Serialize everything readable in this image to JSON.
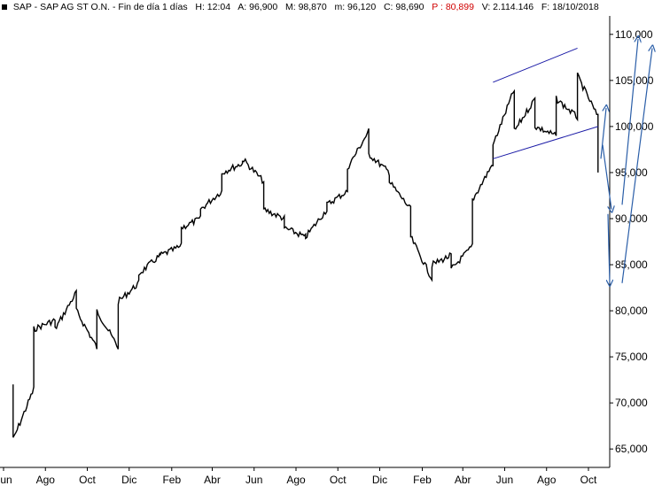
{
  "header": {
    "symbol": "SAP - SAP AG ST O.N.",
    "period": "Fin de día 1 días",
    "high": "H: 12:04",
    "open": "A: 96,900",
    "max": "M: 98,870",
    "min": "m: 96,120",
    "close": "C: 98,690",
    "p_value": "P : 80,899",
    "volume": "V: 2.114.146",
    "date": "F: 18/10/2018"
  },
  "colors": {
    "price": "#000000",
    "channel": "#1a1aa6",
    "arrows": "#2a5ea8",
    "p_value": "#d00000",
    "grid": "#c8c8c8"
  },
  "chart_data": {
    "type": "line",
    "title": "SAP - SAP AG ST O.N.",
    "xlabel": "",
    "ylabel": "",
    "y_axis_side": "right",
    "ylim": [
      63,
      112
    ],
    "y_ticks": [
      "65,000",
      "70,000",
      "75,000",
      "80,000",
      "85,000",
      "90,000",
      "95,000",
      "100,000",
      "105,000",
      "110,000"
    ],
    "x_ticks": [
      "Jun",
      "Ago",
      "Oct",
      "Dic",
      "Feb",
      "Abr",
      "Jun",
      "Ago",
      "Oct",
      "Dic",
      "Feb",
      "Abr",
      "Jun",
      "Ago",
      "Oct"
    ],
    "grid": false,
    "legend": "none",
    "series": [
      {
        "x": [
          "2016-06",
          "2016-06",
          "2016-07",
          "2016-07",
          "2016-07",
          "2016-08",
          "2016-08",
          "2016-09",
          "2016-09",
          "2016-10",
          "2016-10",
          "2016-11",
          "2016-11",
          "2016-12",
          "2016-12",
          "2017-01",
          "2017-01",
          "2017-02",
          "2017-02",
          "2017-03",
          "2017-03",
          "2017-04",
          "2017-04",
          "2017-05",
          "2017-05",
          "2017-06",
          "2017-06",
          "2017-07",
          "2017-07",
          "2017-08",
          "2017-08",
          "2017-09",
          "2017-09",
          "2017-10",
          "2017-10",
          "2017-11",
          "2017-11",
          "2017-12",
          "2017-12",
          "2018-01",
          "2018-01",
          "2018-02",
          "2018-02",
          "2018-03",
          "2018-03",
          "2018-04",
          "2018-04",
          "2018-05",
          "2018-05",
          "2018-06",
          "2018-06",
          "2018-07",
          "2018-07",
          "2018-08",
          "2018-08",
          "2018-09",
          "2018-09",
          "2018-10",
          "2018-10"
        ],
        "y": [
          72.0,
          66.0,
          71.5,
          72.0,
          78.0,
          79.0,
          78.0,
          82.0,
          80.0,
          76.0,
          80.0,
          76.0,
          81.0,
          83.0,
          84.0,
          86.0,
          86.0,
          87.0,
          89.0,
          90.0,
          91.0,
          93.0,
          95.0,
          96.0,
          96.5,
          94.0,
          91.0,
          90.0,
          89.0,
          88.0,
          88.0,
          91.0,
          91.5,
          93.0,
          95.5,
          99.5,
          97.0,
          95.0,
          94.0,
          91.0,
          88.0,
          83.5,
          85.0,
          86.0,
          84.5,
          87.0,
          92.0,
          96.0,
          98.0,
          104.0,
          99.5,
          103.0,
          100.0,
          99.0,
          103.0,
          101.0,
          105.5,
          101.0,
          95.0
        ]
      }
    ],
    "annotations": [
      {
        "type": "channel-line",
        "from": [
          "2018-05",
          104.8
        ],
        "to": [
          "2018-09",
          108.5
        ]
      },
      {
        "type": "channel-line",
        "from": [
          "2018-05",
          96.5
        ],
        "to": [
          "2018-10",
          100.0
        ]
      },
      {
        "type": "arrow",
        "from": [
          96.5,
          "2018-10"
        ],
        "to": [
          102.0,
          "2018-10"
        ]
      },
      {
        "type": "arrow",
        "from": [
          98.0,
          "2018-10"
        ],
        "to": [
          91.0,
          "2018-10"
        ]
      },
      {
        "type": "arrow",
        "from": [
          90.5,
          "2018-11"
        ],
        "to": [
          83.0,
          "2018-11"
        ]
      },
      {
        "type": "arrow",
        "from": [
          91.5,
          "2018-11"
        ],
        "to": [
          109.5,
          "2018-11"
        ]
      },
      {
        "type": "arrow",
        "from": [
          83.0,
          "2018-11"
        ],
        "to": [
          108.5,
          "2018-11"
        ]
      }
    ]
  }
}
